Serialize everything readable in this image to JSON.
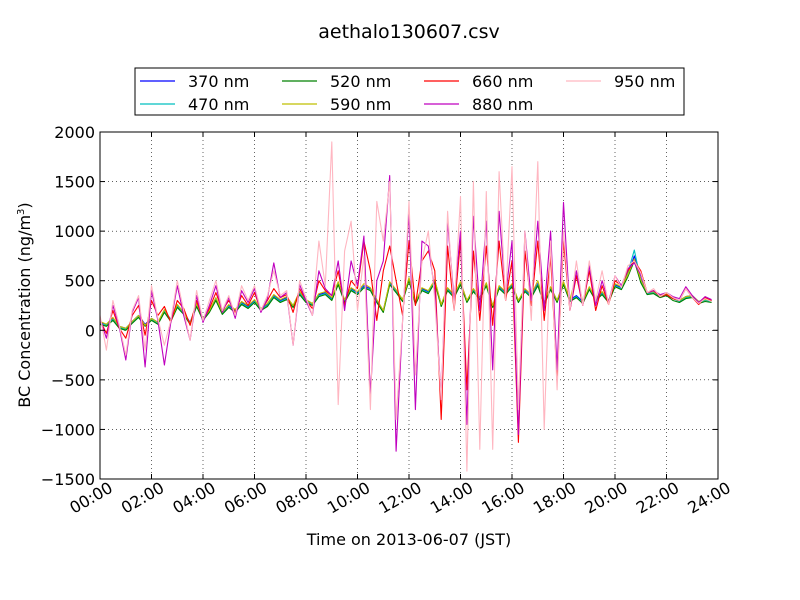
{
  "chart_data": {
    "type": "line",
    "title": "aethalo130607.csv",
    "xlabel": "Time on 2013-06-07 (JST)",
    "ylabel": "BC Concentration (ng/m",
    "ylabel_sup": "3",
    "ylabel_close": ")",
    "xlim": [
      "00:00",
      "24:00"
    ],
    "ylim": [
      -1500,
      2000
    ],
    "x_ticks": [
      "00:00",
      "02:00",
      "04:00",
      "06:00",
      "08:00",
      "10:00",
      "12:00",
      "14:00",
      "16:00",
      "18:00",
      "20:00",
      "22:00",
      "24:00"
    ],
    "y_ticks": [
      "2000",
      "1500",
      "1000",
      "500",
      "0",
      "−500",
      "−1000",
      "−1500"
    ],
    "y_tick_values": [
      2000,
      1500,
      1000,
      500,
      0,
      -500,
      -1000,
      -1500
    ],
    "grid": true,
    "legend_position": "top",
    "x_hours": [
      0.0,
      0.25,
      0.5,
      0.75,
      1.0,
      1.25,
      1.5,
      1.75,
      2.0,
      2.25,
      2.5,
      2.75,
      3.0,
      3.25,
      3.5,
      3.75,
      4.0,
      4.25,
      4.5,
      4.75,
      5.0,
      5.25,
      5.5,
      5.75,
      6.0,
      6.25,
      6.5,
      6.75,
      7.0,
      7.25,
      7.5,
      7.75,
      8.0,
      8.25,
      8.5,
      8.75,
      9.0,
      9.25,
      9.5,
      9.75,
      10.0,
      10.25,
      10.5,
      10.75,
      11.0,
      11.25,
      11.5,
      11.75,
      12.0,
      12.25,
      12.5,
      12.75,
      13.0,
      13.25,
      13.5,
      13.75,
      14.0,
      14.25,
      14.5,
      14.75,
      15.0,
      15.25,
      15.5,
      15.75,
      16.0,
      16.25,
      16.5,
      16.75,
      17.0,
      17.25,
      17.5,
      17.75,
      18.0,
      18.25,
      18.5,
      18.75,
      19.0,
      19.25,
      19.5,
      19.75,
      20.0,
      20.25,
      20.5,
      20.75,
      21.0,
      21.25,
      21.5,
      21.75,
      22.0,
      22.25,
      22.5,
      22.75,
      23.0,
      23.25,
      23.5,
      23.75
    ],
    "series": [
      {
        "name": "370 nm",
        "color": "#0000ff",
        "values": [
          80,
          60,
          120,
          40,
          20,
          90,
          150,
          60,
          120,
          80,
          200,
          110,
          250,
          180,
          80,
          260,
          120,
          200,
          320,
          180,
          250,
          200,
          280,
          240,
          300,
          220,
          260,
          350,
          300,
          330,
          250,
          380,
          300,
          270,
          360,
          380,
          320,
          480,
          300,
          420,
          380,
          450,
          420,
          300,
          200,
          480,
          400,
          310,
          520,
          280,
          420,
          390,
          500,
          260,
          420,
          350,
          480,
          300,
          410,
          330,
          470,
          250,
          440,
          380,
          460,
          300,
          410,
          350,
          470,
          280,
          430,
          300,
          480,
          310,
          350,
          290,
          430,
          320,
          380,
          300,
          460,
          430,
          560,
          750,
          520,
          380,
          390,
          350,
          370,
          330,
          300,
          340,
          350,
          290,
          310,
          300
        ]
      },
      {
        "name": "470 nm",
        "color": "#00bfbf",
        "values": [
          70,
          50,
          110,
          30,
          10,
          80,
          140,
          50,
          110,
          70,
          190,
          100,
          240,
          170,
          70,
          250,
          110,
          190,
          310,
          170,
          240,
          190,
          270,
          230,
          290,
          210,
          250,
          340,
          290,
          320,
          240,
          370,
          290,
          260,
          350,
          370,
          310,
          470,
          290,
          410,
          370,
          440,
          410,
          290,
          190,
          470,
          390,
          300,
          520,
          270,
          410,
          380,
          500,
          250,
          410,
          340,
          470,
          290,
          400,
          320,
          460,
          240,
          430,
          370,
          450,
          290,
          400,
          340,
          460,
          270,
          420,
          290,
          470,
          300,
          340,
          280,
          420,
          310,
          370,
          290,
          450,
          420,
          580,
          810,
          500,
          370,
          380,
          340,
          360,
          320,
          290,
          330,
          340,
          280,
          300,
          290
        ]
      },
      {
        "name": "520 nm",
        "color": "#008000",
        "values": [
          60,
          40,
          100,
          20,
          0,
          70,
          130,
          40,
          100,
          60,
          180,
          90,
          230,
          160,
          60,
          240,
          100,
          180,
          300,
          160,
          230,
          180,
          260,
          220,
          280,
          200,
          240,
          330,
          280,
          310,
          230,
          360,
          280,
          250,
          340,
          360,
          300,
          460,
          280,
          400,
          360,
          430,
          400,
          280,
          180,
          460,
          380,
          290,
          500,
          260,
          400,
          370,
          480,
          240,
          400,
          330,
          460,
          280,
          390,
          310,
          450,
          230,
          420,
          360,
          440,
          280,
          390,
          330,
          450,
          260,
          410,
          280,
          460,
          290,
          330,
          270,
          410,
          300,
          360,
          280,
          440,
          410,
          540,
          700,
          480,
          360,
          370,
          330,
          350,
          300,
          280,
          320,
          330,
          270,
          290,
          280
        ]
      },
      {
        "name": "590 nm",
        "color": "#bfbf00",
        "values": [
          90,
          60,
          130,
          40,
          20,
          90,
          150,
          50,
          120,
          80,
          210,
          100,
          260,
          180,
          70,
          270,
          120,
          200,
          330,
          180,
          260,
          210,
          290,
          250,
          310,
          220,
          270,
          360,
          310,
          340,
          250,
          390,
          310,
          270,
          370,
          390,
          330,
          490,
          310,
          430,
          390,
          470,
          430,
          310,
          200,
          490,
          410,
          310,
          530,
          280,
          430,
          400,
          510,
          260,
          430,
          360,
          490,
          300,
          420,
          330,
          480,
          250,
          450,
          390,
          470,
          300,
          420,
          360,
          500,
          280,
          440,
          300,
          490,
          310,
          560,
          290,
          440,
          320,
          390,
          300,
          470,
          440,
          560,
          720,
          510,
          380,
          390,
          350,
          370,
          320,
          300,
          340,
          350,
          290,
          310,
          300
        ]
      },
      {
        "name": "660 nm",
        "color": "#ff0000",
        "values": [
          100,
          -30,
          200,
          20,
          -80,
          150,
          250,
          -50,
          300,
          150,
          240,
          80,
          300,
          220,
          50,
          300,
          100,
          220,
          380,
          200,
          300,
          180,
          350,
          250,
          380,
          200,
          300,
          420,
          330,
          360,
          180,
          420,
          300,
          220,
          500,
          400,
          350,
          600,
          250,
          500,
          420,
          900,
          600,
          100,
          600,
          850,
          500,
          150,
          900,
          250,
          700,
          800,
          600,
          -900,
          850,
          200,
          900,
          -600,
          800,
          100,
          850,
          50,
          900,
          300,
          700,
          -1130,
          800,
          250,
          900,
          100,
          750,
          -500,
          900,
          200,
          550,
          250,
          600,
          200,
          450,
          260,
          500,
          450,
          600,
          700,
          600,
          380,
          400,
          340,
          360,
          320,
          300,
          420,
          330,
          260,
          330,
          300
        ]
      },
      {
        "name": "880 nm",
        "color": "#bf00bf",
        "values": [
          120,
          -80,
          250,
          30,
          -300,
          180,
          330,
          -370,
          400,
          100,
          -350,
          80,
          450,
          150,
          -100,
          350,
          80,
          250,
          450,
          180,
          330,
          120,
          400,
          280,
          420,
          180,
          320,
          680,
          330,
          380,
          -150,
          460,
          300,
          150,
          600,
          420,
          350,
          700,
          200,
          700,
          450,
          950,
          -650,
          500,
          700,
          1560,
          -1220,
          100,
          1200,
          -800,
          900,
          850,
          400,
          -700,
          1100,
          300,
          1000,
          -950,
          1150,
          200,
          1100,
          -400,
          1200,
          350,
          900,
          -1050,
          1000,
          300,
          1100,
          200,
          1000,
          -400,
          1290,
          200,
          600,
          250,
          650,
          250,
          500,
          280,
          550,
          450,
          620,
          680,
          560,
          380,
          400,
          360,
          380,
          340,
          320,
          440,
          350,
          280,
          340,
          310
        ]
      },
      {
        "name": "950 nm",
        "color": "#ffb6c1",
        "values": [
          150,
          -200,
          300,
          50,
          -250,
          200,
          350,
          -200,
          450,
          120,
          -150,
          100,
          500,
          200,
          -100,
          400,
          100,
          300,
          500,
          200,
          350,
          150,
          450,
          300,
          450,
          200,
          350,
          600,
          350,
          400,
          -150,
          500,
          330,
          150,
          900,
          450,
          1900,
          -750,
          800,
          1100,
          200,
          750,
          -800,
          1300,
          900,
          1500,
          -900,
          100,
          1300,
          -450,
          700,
          1000,
          300,
          -700,
          1200,
          200,
          1350,
          -1420,
          1500,
          -1200,
          1400,
          -1200,
          1600,
          300,
          1650,
          -800,
          1000,
          100,
          1700,
          -1000,
          900,
          -600,
          1000,
          200,
          700,
          250,
          700,
          300,
          600,
          260,
          550,
          430,
          650,
          700,
          580,
          380,
          420,
          340,
          380,
          330,
          300,
          420,
          330,
          270,
          320,
          290
        ]
      }
    ]
  }
}
